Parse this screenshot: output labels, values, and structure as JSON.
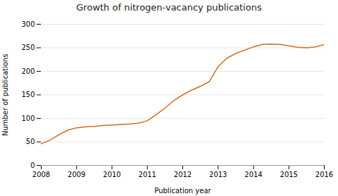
{
  "chart_data": {
    "type": "line",
    "title": "Growth of nitrogen-vacancy publications",
    "xlabel": "Publication year",
    "ylabel": "Number of publications",
    "x": [
      2008.0,
      2008.25,
      2008.5,
      2008.75,
      2009.0,
      2009.25,
      2009.5,
      2009.75,
      2010.0,
      2010.25,
      2010.5,
      2010.75,
      2011.0,
      2011.25,
      2011.5,
      2011.75,
      2012.0,
      2012.25,
      2012.5,
      2012.75,
      2013.0,
      2013.25,
      2013.5,
      2013.75,
      2014.0,
      2014.25,
      2014.5,
      2014.75,
      2015.0,
      2015.25,
      2015.5,
      2015.75,
      2016.0
    ],
    "values": [
      46,
      54,
      65,
      75,
      80,
      82,
      83,
      85,
      86,
      87,
      88,
      90,
      95,
      108,
      122,
      138,
      150,
      160,
      168,
      178,
      210,
      228,
      238,
      245,
      252,
      257,
      258,
      257,
      254,
      251,
      250,
      252,
      257
    ],
    "color": "#D4691E",
    "xlim": [
      2008,
      2016
    ],
    "ylim": [
      0,
      300
    ],
    "xticks": [
      2008,
      2009,
      2010,
      2011,
      2012,
      2013,
      2014,
      2015,
      2016
    ],
    "yticks": [
      0,
      50,
      100,
      150,
      200,
      250,
      300
    ],
    "grid": true
  }
}
